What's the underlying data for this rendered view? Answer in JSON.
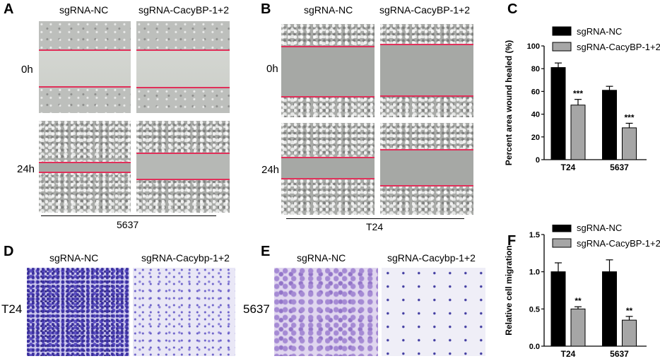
{
  "panels": {
    "A": {
      "letter": "A",
      "col1": "sgRNA-NC",
      "col2": "sgRNA-CacyBP-1+2",
      "row1": "0h",
      "row2": "24h",
      "cell_line": "5637"
    },
    "B": {
      "letter": "B",
      "col1": "sgRNA-NC",
      "col2": "sgRNA-CacyBP-1+2",
      "row1": "0h",
      "row2": "24h",
      "cell_line": "T24"
    },
    "D": {
      "letter": "D",
      "col1": "sgRNA-NC",
      "col2": "sgRNA-Cacybp-1+2",
      "row1": "T24"
    },
    "E": {
      "letter": "E",
      "col1": "sgRNA-NC",
      "col2": "sgRNA-Cacybp-1+2",
      "row1": "5637"
    }
  },
  "chart_data": [
    {
      "panel": "C",
      "type": "bar",
      "categories": [
        "T24",
        "5637"
      ],
      "series": [
        {
          "name": "sgRNA-NC",
          "values": [
            81,
            61
          ],
          "errors": [
            4,
            3.5
          ],
          "color": "#000000"
        },
        {
          "name": "sgRNA-CacyBP-1+2",
          "values": [
            48,
            28
          ],
          "errors": [
            5,
            4
          ],
          "color": "#a6a6a6"
        }
      ],
      "significance": [
        [
          "",
          "***"
        ],
        [
          "",
          "***"
        ]
      ],
      "ylabel": "Percent area wound healed (%)",
      "ylim": [
        0,
        100
      ],
      "yticks": [
        0,
        20,
        40,
        60,
        80,
        100
      ],
      "legend": "top"
    },
    {
      "panel": "F",
      "type": "bar",
      "categories": [
        "T24",
        "5637"
      ],
      "series": [
        {
          "name": "sgRNA-NC",
          "values": [
            1.0,
            1.0
          ],
          "errors": [
            0.12,
            0.16
          ],
          "color": "#000000"
        },
        {
          "name": "sgRNA-CacyBP-1+2",
          "values": [
            0.5,
            0.35
          ],
          "errors": [
            0.03,
            0.05
          ],
          "color": "#a6a6a6"
        }
      ],
      "significance": [
        [
          "",
          "**"
        ],
        [
          "",
          "**"
        ]
      ],
      "ylabel": "Relative cell migration",
      "ylim": [
        0,
        1.5
      ],
      "yticks": [
        0.0,
        0.5,
        1.0,
        1.5
      ],
      "legend": "top"
    }
  ],
  "chart_letters": {
    "C": "C",
    "F": "F"
  },
  "colors": {
    "wound_edge": "#e0305a",
    "crystal_violet": "#3a2fa0"
  }
}
